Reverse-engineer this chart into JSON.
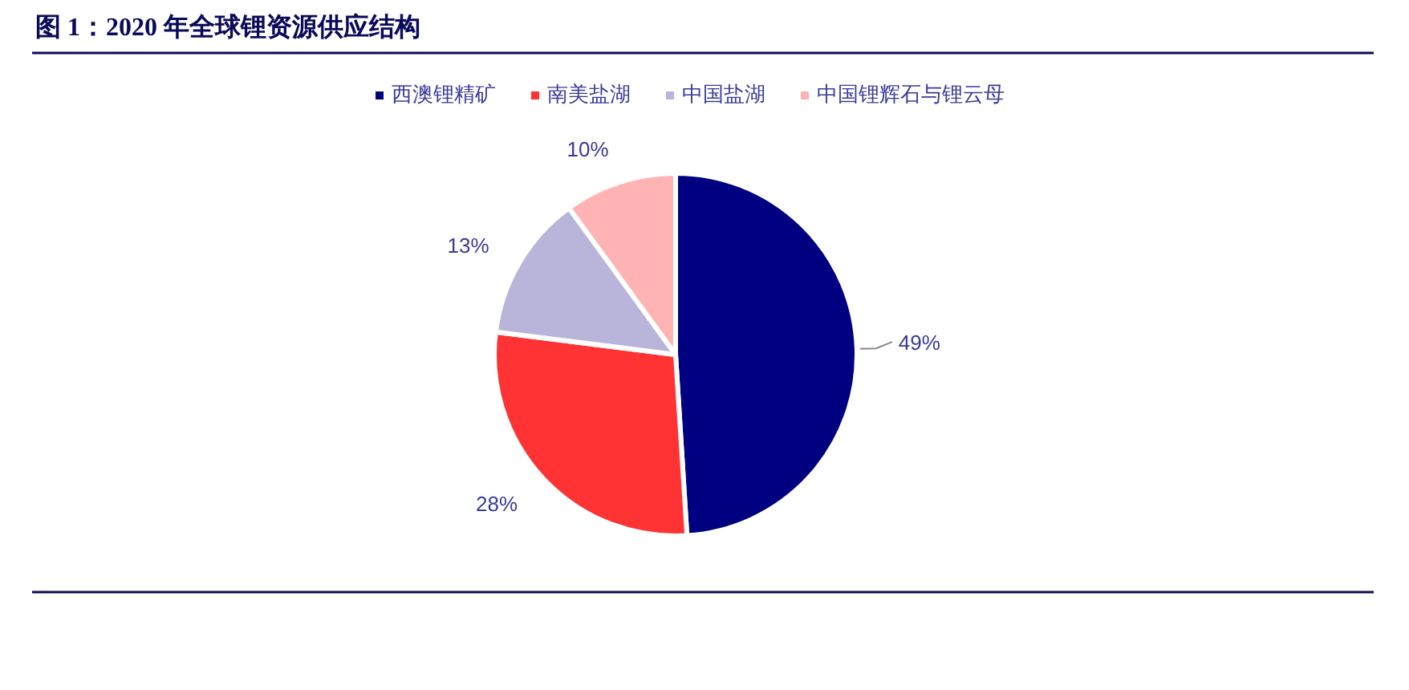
{
  "chart_data": {
    "type": "pie",
    "title": "图 1：2020 年全球锂资源供应结构",
    "categories": [
      "西澳锂精矿",
      "南美盐湖",
      "中国盐湖",
      "中国锂辉石与锂云母"
    ],
    "values": [
      49,
      28,
      13,
      10
    ],
    "colors": [
      "#000080",
      "#ff3333",
      "#b8b4da",
      "#ffb3b3"
    ],
    "value_labels": [
      "49%",
      "28%",
      "13%",
      "10%"
    ],
    "legend": "top"
  }
}
